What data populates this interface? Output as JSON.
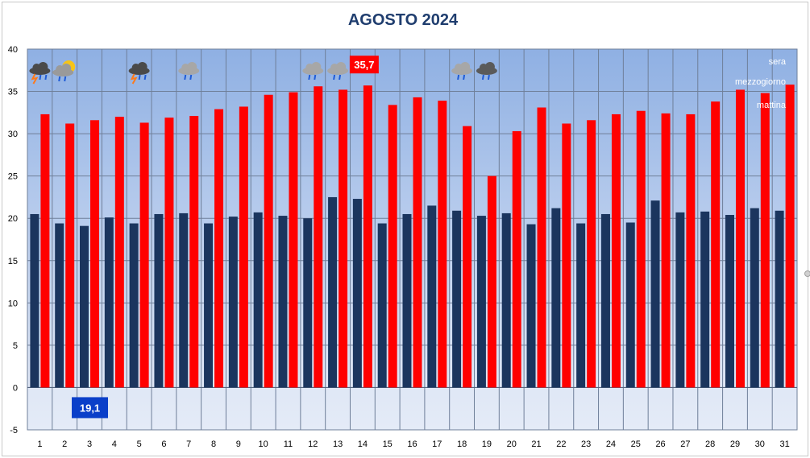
{
  "chart_data": {
    "type": "bar",
    "title": "AGOSTO 2024",
    "xlabel": "",
    "ylabel": "",
    "ylim": [
      -5,
      40
    ],
    "yticks": [
      -5,
      0,
      5,
      10,
      15,
      20,
      25,
      30,
      35,
      40
    ],
    "grid": true,
    "categories": [
      "1",
      "2",
      "3",
      "4",
      "5",
      "6",
      "7",
      "8",
      "9",
      "10",
      "11",
      "12",
      "13",
      "14",
      "15",
      "16",
      "17",
      "18",
      "19",
      "20",
      "21",
      "22",
      "23",
      "24",
      "25",
      "26",
      "27",
      "28",
      "29",
      "30",
      "31"
    ],
    "series": [
      {
        "name": "mattina",
        "color": "#1b355e",
        "values": [
          20.5,
          19.4,
          19.1,
          20.1,
          19.4,
          20.5,
          20.6,
          19.4,
          20.2,
          20.7,
          20.3,
          20.0,
          22.5,
          22.3,
          19.4,
          20.5,
          21.5,
          20.9,
          20.3,
          20.6,
          19.3,
          21.2,
          19.4,
          20.5,
          19.5,
          22.1,
          20.7,
          20.8,
          20.4,
          21.2,
          20.9
        ]
      },
      {
        "name": "mezzogiorno",
        "color": "#ff0000",
        "values": [
          32.3,
          31.2,
          31.6,
          32.0,
          31.3,
          31.9,
          32.1,
          32.9,
          33.2,
          34.6,
          34.9,
          35.6,
          35.2,
          35.7,
          33.4,
          34.3,
          33.9,
          30.9,
          25.0,
          30.3,
          33.1,
          31.2,
          31.6,
          32.3,
          32.7,
          32.4,
          32.3,
          33.8,
          35.2,
          34.8,
          35.8
        ]
      }
    ],
    "legend": {
      "position": "top-right",
      "entries": [
        "sera",
        "mezzogiorno",
        "mattina"
      ]
    },
    "annotations": [
      {
        "label": "35,7",
        "category": "14",
        "value": 35.7,
        "color": "#ff0000"
      },
      {
        "label": "19,1",
        "category": "3",
        "value": 19.1,
        "color": "#0a3fc9"
      }
    ],
    "weather_icons": [
      {
        "day": "1",
        "icon": "thunderstorm-icon"
      },
      {
        "day": "2",
        "icon": "sun-rain-cloud-icon"
      },
      {
        "day": "5",
        "icon": "thunderstorm-icon"
      },
      {
        "day": "7",
        "icon": "light-rain-cloud-icon"
      },
      {
        "day": "12",
        "icon": "light-rain-cloud-icon"
      },
      {
        "day": "13",
        "icon": "light-rain-cloud-icon"
      },
      {
        "day": "18",
        "icon": "rain-cloud-icon"
      },
      {
        "day": "19",
        "icon": "heavy-rain-cloud-icon"
      }
    ]
  }
}
